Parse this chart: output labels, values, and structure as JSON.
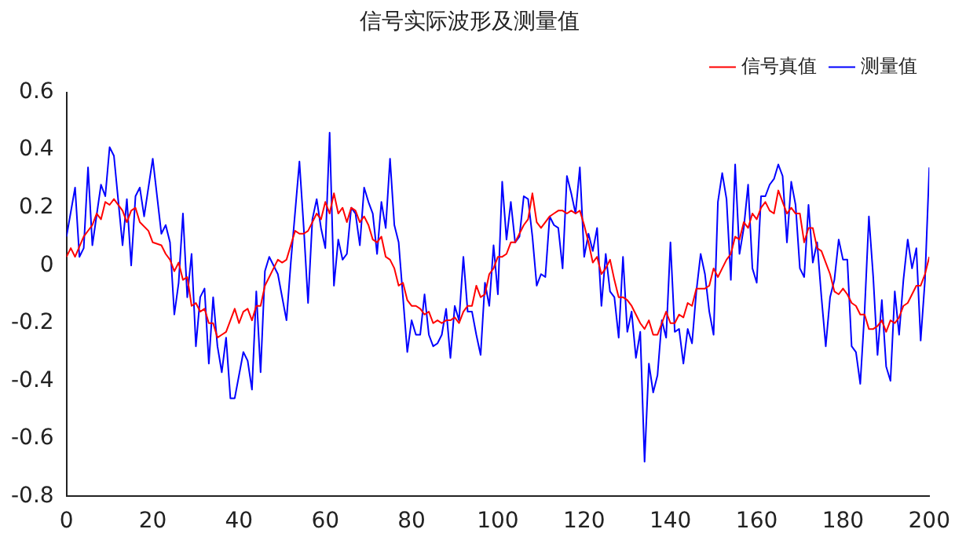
{
  "chart_data": {
    "type": "line",
    "title": "信号实际波形及测量值",
    "legend": "top right",
    "grid": false,
    "marker": "none",
    "line_style": "solid",
    "xlim": [
      0,
      200
    ],
    "xticks": [
      0,
      20,
      40,
      60,
      80,
      100,
      120,
      140,
      160,
      180,
      200
    ],
    "ylim": [
      -0.8,
      0.6
    ],
    "yticks": [
      -0.8,
      -0.6,
      -0.4,
      -0.2,
      0,
      0.2,
      0.4,
      0.6
    ],
    "series": [
      {
        "name": "信号真值",
        "color": "#ff0000",
        "x": [
          0,
          1,
          2,
          4,
          6,
          7,
          8,
          9,
          10,
          11,
          13,
          14,
          15,
          16,
          17,
          19,
          20,
          22,
          23,
          24,
          25,
          26,
          27,
          28,
          29,
          30,
          31,
          32,
          33,
          34,
          35,
          36,
          37,
          38,
          39,
          40,
          41,
          42,
          43,
          44,
          45,
          46,
          47,
          48,
          49,
          50,
          51,
          52,
          53,
          54,
          55,
          56,
          57,
          58,
          59,
          60,
          61,
          62,
          63,
          64,
          65,
          66,
          67,
          68,
          69,
          70,
          71,
          72,
          73,
          74,
          75,
          76,
          77,
          78,
          79,
          80,
          81,
          82,
          83,
          84,
          85,
          86,
          87,
          88,
          89,
          90,
          91,
          92,
          93,
          94,
          95,
          96,
          97,
          98,
          99,
          100,
          101,
          102,
          103,
          104,
          105,
          106,
          107,
          108,
          109,
          110,
          111,
          112,
          113,
          114,
          115,
          116,
          117,
          118,
          119,
          120,
          121,
          122,
          123,
          124,
          125,
          126,
          127,
          128,
          129,
          130,
          131,
          132,
          133,
          134,
          135,
          136,
          137,
          138,
          139,
          140,
          141,
          142,
          143,
          144,
          145,
          146,
          147,
          148,
          149,
          150,
          151,
          152,
          153,
          154,
          155,
          156,
          157,
          158,
          159,
          160,
          161,
          162,
          163,
          164,
          165,
          166,
          167,
          168,
          169,
          170,
          171,
          172,
          173,
          174,
          175,
          176,
          177,
          178,
          179,
          180,
          181,
          182,
          183,
          184,
          185,
          186,
          187,
          188,
          189,
          190,
          191,
          192,
          193,
          194,
          195,
          196,
          197,
          198,
          199,
          200
        ],
        "values": [
          0.03,
          0.06,
          0.03,
          0.1,
          0.14,
          0.18,
          0.16,
          0.22,
          0.21,
          0.23,
          0.19,
          0.15,
          0.19,
          0.2,
          0.15,
          0.12,
          0.08,
          0.07,
          0.04,
          0.02,
          -0.02,
          0.01,
          -0.05,
          -0.04,
          -0.14,
          -0.13,
          -0.16,
          -0.15,
          -0.2,
          -0.2,
          -0.25,
          -0.24,
          -0.23,
          -0.19,
          -0.15,
          -0.2,
          -0.16,
          -0.15,
          -0.19,
          -0.14,
          -0.14,
          -0.07,
          -0.04,
          -0.01,
          0.02,
          0.01,
          0.02,
          0.07,
          0.12,
          0.11,
          0.11,
          0.12,
          0.15,
          0.18,
          0.16,
          0.22,
          0.18,
          0.25,
          0.18,
          0.2,
          0.15,
          0.2,
          0.19,
          0.15,
          0.17,
          0.14,
          0.09,
          0.08,
          0.1,
          0.03,
          0.02,
          -0.01,
          -0.07,
          -0.06,
          -0.12,
          -0.14,
          -0.14,
          -0.15,
          -0.17,
          -0.16,
          -0.2,
          -0.19,
          -0.2,
          -0.19,
          -0.19,
          -0.18,
          -0.2,
          -0.16,
          -0.14,
          -0.14,
          -0.07,
          -0.11,
          -0.1,
          -0.03,
          -0.01,
          0.03,
          0.03,
          0.04,
          0.08,
          0.08,
          0.11,
          0.14,
          0.16,
          0.25,
          0.15,
          0.13,
          0.15,
          0.17,
          0.18,
          0.19,
          0.19,
          0.18,
          0.19,
          0.18,
          0.19,
          0.14,
          0.08,
          0.01,
          0.03,
          -0.03,
          -0.01,
          0.02,
          -0.05,
          -0.11,
          -0.11,
          -0.12,
          -0.14,
          -0.17,
          -0.2,
          -0.22,
          -0.19,
          -0.24,
          -0.24,
          -0.2,
          -0.16,
          -0.2,
          -0.2,
          -0.17,
          -0.18,
          -0.13,
          -0.14,
          -0.08,
          -0.08,
          -0.08,
          -0.07,
          -0.01,
          -0.04,
          -0.01,
          0.02,
          0.04,
          0.1,
          0.09,
          0.15,
          0.13,
          0.18,
          0.16,
          0.2,
          0.22,
          0.19,
          0.18,
          0.26,
          0.22,
          0.18,
          0.2,
          0.18,
          0.18,
          0.08,
          0.13,
          0.13,
          0.06,
          0.05,
          0.01,
          -0.03,
          -0.09,
          -0.1,
          -0.08,
          -0.1,
          -0.13,
          -0.14,
          -0.17,
          -0.17,
          -0.22,
          -0.22,
          -0.21,
          -0.19,
          -0.23,
          -0.19,
          -0.2,
          -0.18,
          -0.14,
          -0.13,
          -0.1,
          -0.07,
          -0.07,
          -0.03,
          0.03
        ]
      },
      {
        "name": "测量值",
        "color": "#0000ff",
        "x": [
          0,
          2,
          3,
          4,
          5,
          6,
          8,
          9,
          10,
          11,
          13,
          14,
          15,
          16,
          17,
          18,
          20,
          22,
          23,
          24,
          25,
          26,
          27,
          28,
          29,
          30,
          31,
          32,
          33,
          34,
          35,
          36,
          37,
          38,
          39,
          41,
          42,
          43,
          44,
          45,
          46,
          47,
          49,
          51,
          52,
          54,
          55,
          56,
          57,
          58,
          59,
          60,
          61,
          62,
          63,
          64,
          65,
          66,
          67,
          68,
          69,
          70,
          71,
          72,
          73,
          74,
          75,
          76,
          77,
          79,
          80,
          81,
          82,
          83,
          84,
          85,
          86,
          87,
          88,
          89,
          90,
          91,
          92,
          93,
          94,
          95,
          96,
          97,
          98,
          99,
          100,
          101,
          102,
          103,
          104,
          105,
          106,
          107,
          108,
          109,
          110,
          111,
          112,
          113,
          114,
          115,
          116,
          117,
          118,
          119,
          120,
          121,
          122,
          123,
          124,
          125,
          126,
          127,
          128,
          129,
          130,
          131,
          132,
          133,
          134,
          135,
          136,
          137,
          138,
          139,
          140,
          141,
          142,
          143,
          144,
          145,
          146,
          147,
          148,
          149,
          150,
          151,
          152,
          153,
          154,
          155,
          156,
          157,
          158,
          159,
          160,
          161,
          162,
          163,
          164,
          165,
          166,
          167,
          168,
          169,
          170,
          171,
          172,
          173,
          174,
          175,
          176,
          177,
          178,
          179,
          180,
          181,
          182,
          183,
          184,
          185,
          186,
          187,
          188,
          189,
          190,
          191,
          192,
          193,
          194,
          195,
          196,
          197,
          198,
          199,
          200
        ],
        "values": [
          0.1,
          0.27,
          0.03,
          0.06,
          0.34,
          0.07,
          0.28,
          0.24,
          0.41,
          0.38,
          0.07,
          0.23,
          0,
          0.24,
          0.27,
          0.17,
          0.37,
          0.11,
          0.14,
          0.08,
          -0.17,
          -0.06,
          0.18,
          -0.11,
          0.04,
          -0.28,
          -0.11,
          -0.08,
          -0.34,
          -0.11,
          -0.28,
          -0.37,
          -0.25,
          -0.46,
          -0.46,
          -0.3,
          -0.33,
          -0.43,
          -0.09,
          -0.37,
          -0.02,
          0.03,
          -0.03,
          -0.19,
          0.01,
          0.36,
          0.13,
          -0.13,
          0.16,
          0.23,
          0.13,
          0.06,
          0.46,
          -0.07,
          0.09,
          0.02,
          0.04,
          0.2,
          0.18,
          0.07,
          0.27,
          0.22,
          0.18,
          0.04,
          0.22,
          0.13,
          0.37,
          0.14,
          0.08,
          -0.3,
          -0.19,
          -0.24,
          -0.24,
          -0.1,
          -0.24,
          -0.28,
          -0.27,
          -0.24,
          -0.15,
          -0.32,
          -0.14,
          -0.19,
          0.03,
          -0.16,
          -0.16,
          -0.24,
          -0.31,
          -0.06,
          -0.14,
          0.07,
          -0.1,
          0.29,
          0.09,
          0.22,
          0.08,
          0.1,
          0.24,
          0.23,
          0.1,
          -0.07,
          -0.03,
          -0.04,
          0.17,
          0.14,
          0.13,
          -0.01,
          0.31,
          0.25,
          0.18,
          0.34,
          0.03,
          0.11,
          0.05,
          0.13,
          -0.14,
          0.04,
          -0.09,
          -0.11,
          -0.25,
          0.03,
          -0.23,
          -0.16,
          -0.32,
          -0.23,
          -0.68,
          -0.34,
          -0.44,
          -0.38,
          -0.19,
          -0.25,
          0.08,
          -0.23,
          -0.22,
          -0.34,
          -0.22,
          -0.27,
          -0.09,
          0.04,
          -0.03,
          -0.16,
          -0.24,
          0.22,
          0.32,
          0.23,
          -0.05,
          0.35,
          0.04,
          0.13,
          0.28,
          -0.01,
          -0.06,
          0.24,
          0.24,
          0.28,
          0.3,
          0.35,
          0.31,
          0.08,
          0.29,
          0.21,
          -0.01,
          -0.04,
          0.21,
          0.01,
          0.08,
          -0.11,
          -0.28,
          -0.11,
          -0.05,
          0.09,
          0.02,
          0.02,
          -0.28,
          -0.3,
          -0.41,
          -0.16,
          0.17,
          -0.04,
          -0.31,
          -0.12,
          -0.35,
          -0.4,
          -0.09,
          -0.24,
          -0.05,
          0.09,
          -0.01,
          0.06,
          -0.26,
          -0.05,
          0.34
        ]
      }
    ]
  }
}
